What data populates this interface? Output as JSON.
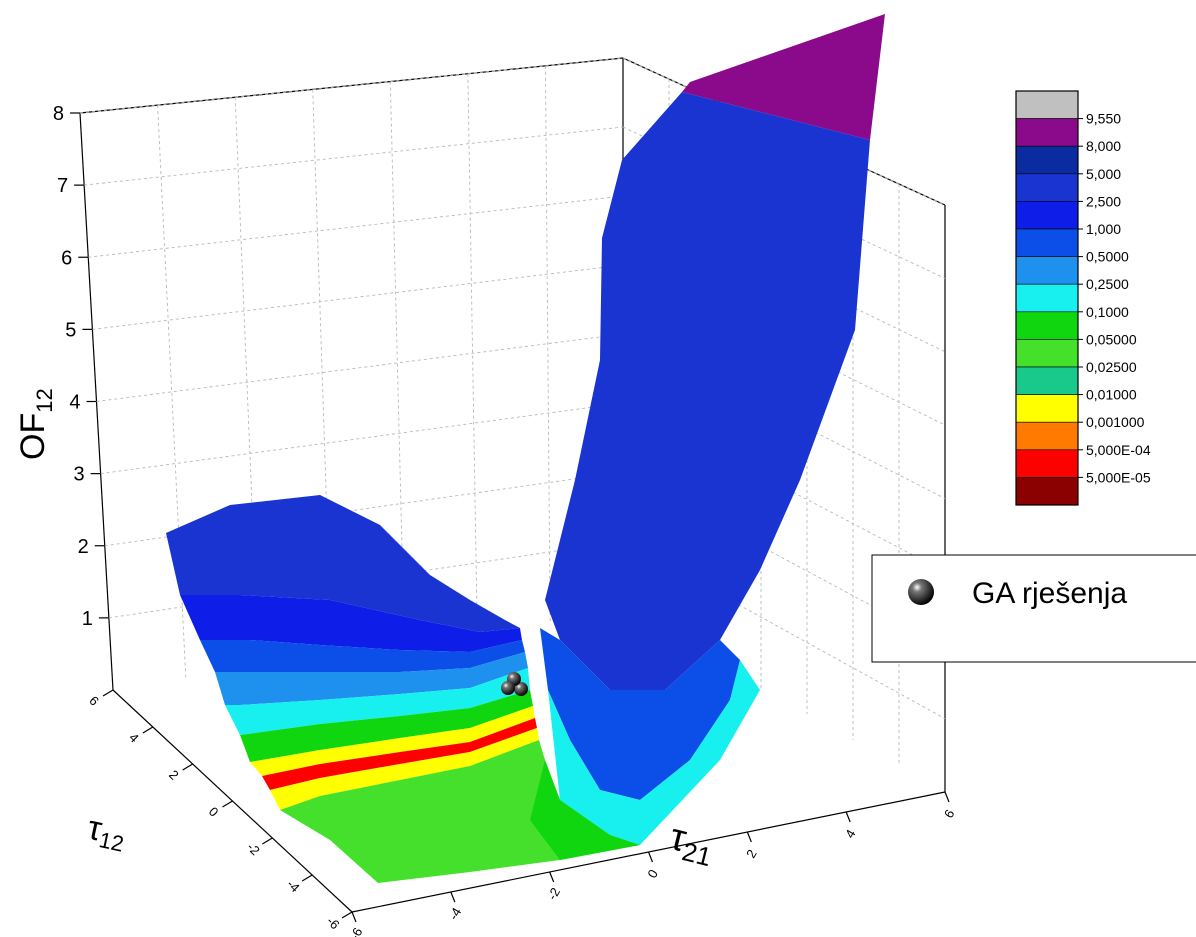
{
  "chart_data": {
    "type": "surface",
    "zlabel": "OF",
    "zlabel_sub": "12",
    "xlabel": "τ",
    "xlabel_sub": "21",
    "ylabel": "τ",
    "ylabel_sub": "12",
    "z_ticks": [
      "8",
      "7",
      "6",
      "5",
      "4",
      "3",
      "2",
      "1"
    ],
    "z_range": [
      0,
      8
    ],
    "x_ticks": [
      "6",
      "4",
      "2",
      "0",
      "-2",
      "-4",
      "-6"
    ],
    "y_ticks": [
      "6",
      "4",
      "2",
      "0",
      "-2",
      "-4",
      "-6"
    ],
    "x_range": [
      -6,
      6
    ],
    "y_range": [
      -6,
      6
    ],
    "grid": true,
    "colorbar": {
      "levels": [
        "9,550",
        "8,000",
        "5,000",
        "2,500",
        "1,000",
        "0,5000",
        "0,2500",
        "0,1000",
        "0,05000",
        "0,02500",
        "0,01000",
        "0,001000",
        "5,000E-04",
        "5,000E-05"
      ],
      "colors": [
        "#c0c0c0",
        "#8b0a8b",
        "#0a2ca0",
        "#1a34d2",
        "#0e1ee8",
        "#0b4fe8",
        "#1e90ee",
        "#18f0f0",
        "#0fd60f",
        "#45e02c",
        "#19c98c",
        "#ffff00",
        "#ff7a00",
        "#ff0000",
        "#8b0000"
      ]
    },
    "series": [
      {
        "name": "GA rješenja",
        "marker": "black-sphere",
        "points": [
          {
            "x": 0.3,
            "y": 0.6,
            "z": 0.0
          },
          {
            "x": 0.2,
            "y": 0.2,
            "z": 0.0
          },
          {
            "x": 0.1,
            "y": -0.2,
            "z": 0.0
          }
        ]
      }
    ],
    "legend_position": "right"
  }
}
